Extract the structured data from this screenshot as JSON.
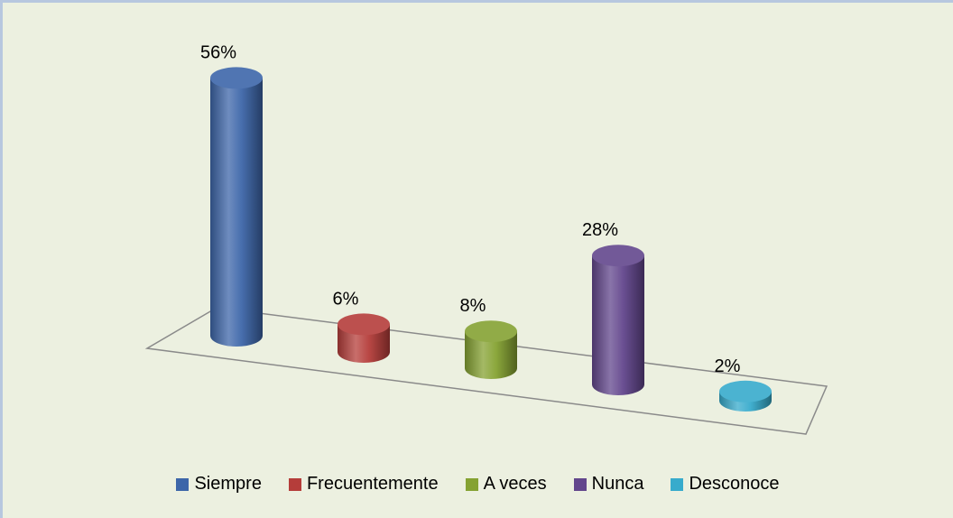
{
  "chart_data": {
    "type": "bar3d",
    "categories": [
      "Siempre",
      "Frecuentemente",
      "A veces",
      "Nunca",
      "Desconoce"
    ],
    "values": [
      56,
      6,
      8,
      28,
      2
    ],
    "value_labels": [
      "56%",
      "6%",
      "8%",
      "28%",
      "2%"
    ],
    "colors": [
      "#3d66a9",
      "#b53d3a",
      "#85a232",
      "#62468c",
      "#37abcc"
    ],
    "legend": "bottom"
  }
}
